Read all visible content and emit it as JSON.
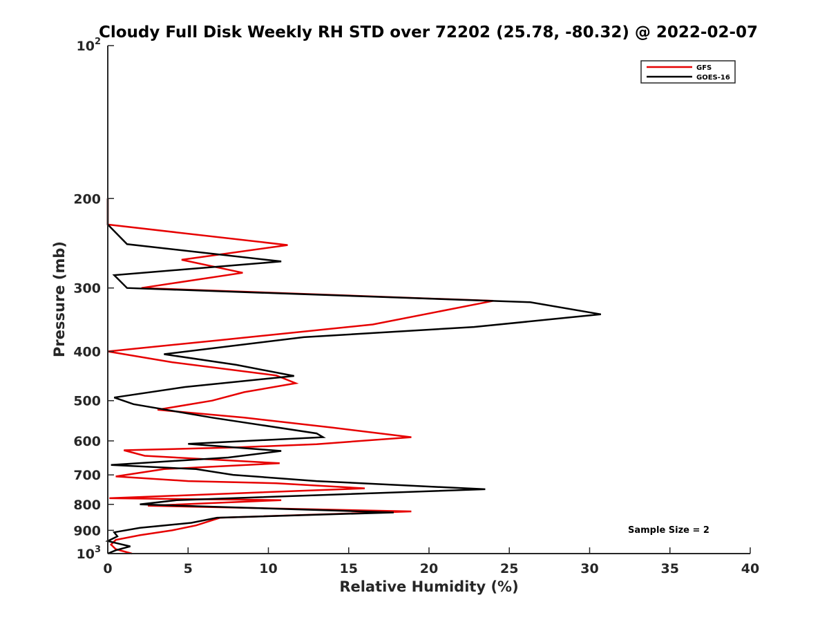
{
  "chart_data": {
    "type": "line",
    "title": "Cloudy Full Disk Weekly RH STD over 72202 (25.78, -80.32) @ 2022-02-07",
    "xlabel": "Relative Humidity (%)",
    "ylabel": "Pressure (mb)",
    "xlim": [
      0,
      40
    ],
    "ylim": [
      100,
      1000
    ],
    "y_scale": "log",
    "y_reversed": true,
    "x_ticks": [
      0,
      5,
      10,
      15,
      20,
      25,
      30,
      35,
      40
    ],
    "x_tick_labels": [
      "0",
      "5",
      "10",
      "15",
      "20",
      "25",
      "30",
      "35",
      "40"
    ],
    "y_ticks": [
      {
        "value": 100,
        "base": "10",
        "exp": "2"
      },
      {
        "value": 200,
        "label": "200"
      },
      {
        "value": 300,
        "label": "300"
      },
      {
        "value": 400,
        "label": "400"
      },
      {
        "value": 500,
        "label": "500"
      },
      {
        "value": 600,
        "label": "600"
      },
      {
        "value": 700,
        "label": "700"
      },
      {
        "value": 800,
        "label": "800"
      },
      {
        "value": 900,
        "label": "900"
      },
      {
        "value": 1000,
        "base": "10",
        "exp": "3"
      }
    ],
    "legend_position": "top-right",
    "grid": false,
    "annotation": "Sample Size = 2",
    "series": [
      {
        "name": "GFS",
        "color": "#e60000",
        "points": [
          [
            0,
            200
          ],
          [
            0,
            225
          ],
          [
            11.2,
            247
          ],
          [
            4.6,
            264
          ],
          [
            8.4,
            280
          ],
          [
            2.1,
            300
          ],
          [
            24,
            318
          ],
          [
            16.5,
            354
          ],
          [
            7,
            380
          ],
          [
            0,
            400
          ],
          [
            4,
            420
          ],
          [
            10.5,
            446
          ],
          [
            11.7,
            462
          ],
          [
            8.5,
            481
          ],
          [
            6.5,
            500
          ],
          [
            3.1,
            521
          ],
          [
            8.5,
            540
          ],
          [
            14,
            565
          ],
          [
            18.9,
            590
          ],
          [
            13,
            609
          ],
          [
            8,
            618
          ],
          [
            1,
            626
          ],
          [
            2.3,
            642
          ],
          [
            10.7,
            664
          ],
          [
            3.5,
            682
          ],
          [
            0.5,
            705
          ],
          [
            5,
            720
          ],
          [
            10.5,
            727
          ],
          [
            16,
            744
          ],
          [
            0.1,
            778
          ],
          [
            10.8,
            785
          ],
          [
            2.5,
            805
          ],
          [
            18.9,
            826
          ],
          [
            7,
            850
          ],
          [
            5.5,
            880
          ],
          [
            4,
            900
          ],
          [
            2,
            920
          ],
          [
            0.5,
            940
          ],
          [
            0.2,
            960
          ],
          [
            0.5,
            980
          ],
          [
            1.5,
            1000
          ]
        ]
      },
      {
        "name": "GOES-16",
        "color": "#000000",
        "points": [
          [
            0,
            200
          ],
          [
            0,
            225
          ],
          [
            1.2,
            246
          ],
          [
            10.8,
            266
          ],
          [
            0.4,
            283
          ],
          [
            1.2,
            300
          ],
          [
            26.3,
            320
          ],
          [
            30.7,
            338
          ],
          [
            22.8,
            358
          ],
          [
            12.2,
            375
          ],
          [
            3.5,
            405
          ],
          [
            8,
            425
          ],
          [
            11.6,
            447
          ],
          [
            4.8,
            470
          ],
          [
            0.4,
            493
          ],
          [
            1.6,
            508
          ],
          [
            6.5,
            540
          ],
          [
            13,
            580
          ],
          [
            13.4,
            590
          ],
          [
            5,
            608
          ],
          [
            10.8,
            628
          ],
          [
            7.5,
            647
          ],
          [
            0.2,
            669
          ],
          [
            5.5,
            682
          ],
          [
            7.8,
            700
          ],
          [
            13,
            720
          ],
          [
            23.5,
            747
          ],
          [
            4.3,
            785
          ],
          [
            2,
            800
          ],
          [
            17.8,
            830
          ],
          [
            6.8,
            850
          ],
          [
            5.2,
            870
          ],
          [
            2,
            890
          ],
          [
            0.4,
            908
          ],
          [
            0.6,
            925
          ],
          [
            0,
            945
          ],
          [
            0.8,
            958
          ],
          [
            1.4,
            968
          ],
          [
            0.5,
            985
          ],
          [
            0,
            1000
          ]
        ]
      }
    ]
  }
}
